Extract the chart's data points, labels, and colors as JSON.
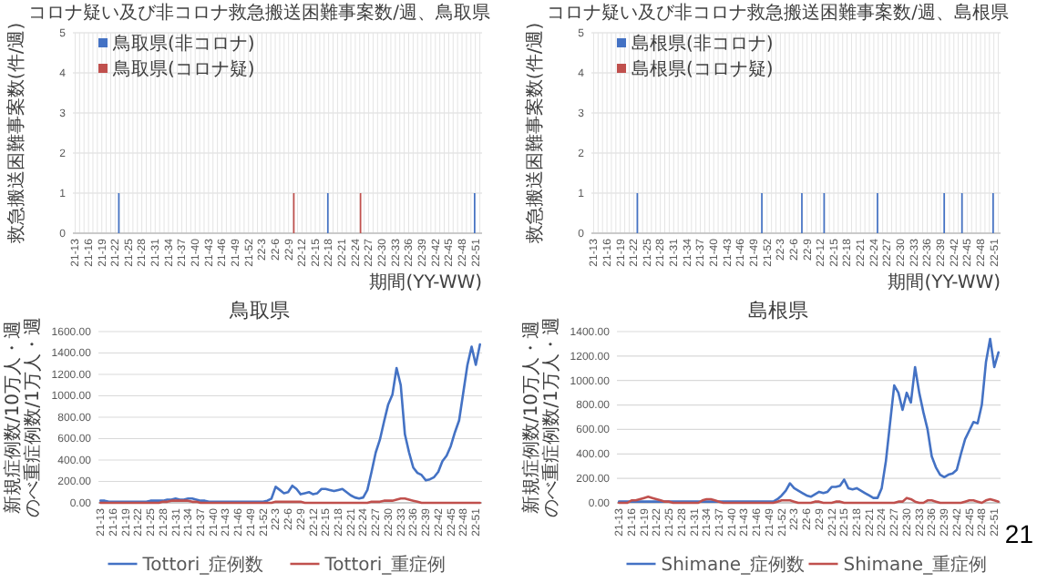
{
  "chart_data": [
    {
      "type": "bar",
      "title": "コロナ疑い及び非コロナ救急搬送困難事案数/週、鳥取県",
      "xlabel": "期間(YY-WW)",
      "ylabel": "救急搬送困難事案数(件/週)",
      "categories": [
        "21-13",
        null,
        null,
        "21-16",
        null,
        null,
        "21-19",
        null,
        null,
        "21-22",
        null,
        null,
        "21-25",
        null,
        null,
        "21-28",
        null,
        null,
        "21-31",
        null,
        null,
        "21-34",
        null,
        null,
        "21-37",
        null,
        null,
        "21-40",
        null,
        null,
        "21-43",
        null,
        null,
        "21-46",
        null,
        null,
        "21-49",
        null,
        null,
        "21-52",
        null,
        null,
        "22-3",
        null,
        null,
        "22-6",
        null,
        null,
        "22-9",
        null,
        null,
        "22-12",
        null,
        null,
        "22-15",
        null,
        null,
        "22-18",
        null,
        null,
        "22-21",
        null,
        null,
        "22-24",
        null,
        null,
        "22-27",
        null,
        null,
        "22-30",
        null,
        null,
        "22-33",
        null,
        null,
        "22-36",
        null,
        null,
        "22-39",
        null,
        null,
        "22-42",
        null,
        null,
        "22-45",
        null,
        null,
        "22-48",
        null,
        null,
        "22-51",
        null
      ],
      "ylim": [
        0,
        5
      ],
      "yticks": [
        0,
        1,
        2,
        3,
        4,
        5
      ],
      "grid": true,
      "legend": "top left",
      "series": [
        {
          "name": "鳥取県(非コロナ)",
          "color": "#4472c4",
          "values": [
            0,
            0,
            0,
            0,
            0,
            0,
            0,
            0,
            0,
            0,
            1,
            0,
            0,
            0,
            0,
            0,
            0,
            0,
            0,
            0,
            0,
            0,
            0,
            0,
            0,
            0,
            0,
            0,
            0,
            0,
            0,
            0,
            0,
            0,
            0,
            0,
            0,
            0,
            0,
            0,
            0,
            0,
            0,
            0,
            0,
            0,
            0,
            0,
            0,
            0,
            0,
            0,
            0,
            0,
            0,
            0,
            0,
            1,
            0,
            0,
            0,
            0,
            0,
            0,
            0,
            0,
            0,
            0,
            0,
            0,
            0,
            0,
            0,
            0,
            0,
            0,
            0,
            0,
            0,
            0,
            0,
            0,
            0,
            0,
            0,
            0,
            0,
            0,
            0,
            0,
            1,
            0
          ]
        },
        {
          "name": "鳥取県(コロナ疑)",
          "color": "#c0504d",
          "values": [
            0,
            0,
            0,
            0,
            0,
            0,
            0,
            0,
            0,
            0,
            0,
            0,
            0,
            0,
            0,
            0,
            0,
            0,
            0,
            0,
            0,
            0,
            0,
            0,
            0,
            0,
            0,
            0,
            0,
            0,
            0,
            0,
            0,
            0,
            0,
            0,
            0,
            0,
            0,
            0,
            0,
            0,
            0,
            0,
            0,
            0,
            0,
            0,
            0,
            1,
            0,
            0,
            0,
            0,
            0,
            0,
            0,
            0,
            0,
            0,
            0,
            0,
            0,
            0,
            1,
            0,
            0,
            0,
            0,
            0,
            0,
            0,
            0,
            0,
            0,
            0,
            0,
            0,
            0,
            0,
            0,
            0,
            0,
            0,
            0,
            0,
            0,
            0,
            0,
            0,
            0,
            0
          ]
        }
      ]
    },
    {
      "type": "bar",
      "title": "コロナ疑い及び非コロナ救急搬送困難事案数/週、島根県",
      "xlabel": "期間(YY-WW)",
      "ylabel": "救急搬送困難事案数(件/週)",
      "categories": [
        "21-13",
        null,
        null,
        "21-16",
        null,
        null,
        "21-19",
        null,
        null,
        "21-22",
        null,
        null,
        "21-25",
        null,
        null,
        "21-28",
        null,
        null,
        "21-31",
        null,
        null,
        "21-34",
        null,
        null,
        "21-37",
        null,
        null,
        "21-40",
        null,
        null,
        "21-43",
        null,
        null,
        "21-46",
        null,
        null,
        "21-49",
        null,
        null,
        "21-52",
        null,
        null,
        "22-3",
        null,
        null,
        "22-6",
        null,
        null,
        "22-9",
        null,
        null,
        "22-12",
        null,
        null,
        "22-15",
        null,
        null,
        "22-18",
        null,
        null,
        "22-21",
        null,
        null,
        "22-24",
        null,
        null,
        "22-27",
        null,
        null,
        "22-30",
        null,
        null,
        "22-33",
        null,
        null,
        "22-36",
        null,
        null,
        "22-39",
        null,
        null,
        "22-42",
        null,
        null,
        "22-45",
        null,
        null,
        "22-48",
        null,
        null,
        "22-51",
        null
      ],
      "ylim": [
        0,
        5
      ],
      "yticks": [
        0,
        1,
        2,
        3,
        4,
        5
      ],
      "grid": true,
      "legend": "top left",
      "series": [
        {
          "name": "島根県(非コロナ)",
          "color": "#4472c4",
          "values": [
            0,
            0,
            0,
            0,
            0,
            0,
            0,
            0,
            0,
            0,
            1,
            0,
            0,
            0,
            0,
            0,
            0,
            0,
            0,
            0,
            0,
            0,
            0,
            0,
            0,
            0,
            0,
            0,
            0,
            0,
            0,
            0,
            0,
            0,
            0,
            0,
            0,
            0,
            1,
            0,
            0,
            0,
            0,
            0,
            0,
            0,
            0,
            1,
            0,
            0,
            0,
            0,
            1,
            0,
            0,
            0,
            0,
            0,
            0,
            0,
            0,
            0,
            0,
            0,
            1,
            0,
            0,
            0,
            0,
            0,
            0,
            0,
            0,
            0,
            0,
            0,
            0,
            0,
            0,
            1,
            0,
            0,
            0,
            1,
            0,
            0,
            0,
            0,
            0,
            0,
            1,
            0
          ]
        },
        {
          "name": "島根県(コロナ疑)",
          "color": "#c0504d",
          "values": [
            0,
            0,
            0,
            0,
            0,
            0,
            0,
            0,
            0,
            0,
            0,
            0,
            0,
            0,
            0,
            0,
            0,
            0,
            0,
            0,
            0,
            0,
            0,
            0,
            0,
            0,
            0,
            0,
            0,
            0,
            0,
            0,
            0,
            0,
            0,
            0,
            0,
            0,
            0,
            0,
            0,
            0,
            0,
            0,
            0,
            0,
            0,
            0,
            0,
            0,
            0,
            0,
            0,
            0,
            0,
            0,
            0,
            0,
            0,
            0,
            0,
            0,
            0,
            0,
            0,
            0,
            0,
            0,
            0,
            0,
            0,
            0,
            0,
            0,
            0,
            0,
            0,
            0,
            0,
            0,
            0,
            0,
            0,
            0,
            0,
            0,
            0,
            0,
            0,
            0,
            0,
            0
          ]
        }
      ]
    },
    {
      "type": "line",
      "title": "鳥取県",
      "ylabel": "新規症例数/10万人・週のべ重症例数/1万人・週",
      "categories": [
        "21-13",
        null,
        null,
        "21-16",
        null,
        null,
        "21-19",
        null,
        null,
        "21-22",
        null,
        null,
        "21-25",
        null,
        null,
        "21-28",
        null,
        null,
        "21-31",
        null,
        null,
        "21-34",
        null,
        null,
        "21-37",
        null,
        null,
        "21-40",
        null,
        null,
        "21-43",
        null,
        null,
        "21-46",
        null,
        null,
        "21-49",
        null,
        null,
        "21-52",
        null,
        null,
        "22-3",
        null,
        null,
        "22-6",
        null,
        null,
        "22-9",
        null,
        null,
        "22-12",
        null,
        null,
        "22-15",
        null,
        null,
        "22-18",
        null,
        null,
        "22-21",
        null,
        null,
        "22-24",
        null,
        null,
        "22-27",
        null,
        null,
        "22-30",
        null,
        null,
        "22-33",
        null,
        null,
        "22-36",
        null,
        null,
        "22-39",
        null,
        null,
        "22-42",
        null,
        null,
        "22-45",
        null,
        null,
        "22-48",
        null,
        null,
        "22-51",
        null
      ],
      "ylim": [
        0,
        1600
      ],
      "yticks": [
        {
          "value": 0,
          "label": "0.00"
        },
        {
          "value": 200,
          "label": "200.00"
        },
        {
          "value": 400,
          "label": "400.00"
        },
        {
          "value": 600,
          "label": "600.00"
        },
        {
          "value": 800,
          "label": "800.00"
        },
        {
          "value": 1000,
          "label": "1000.00"
        },
        {
          "value": 1200,
          "label": "1200.00"
        },
        {
          "value": 1400,
          "label": "1400.00"
        },
        {
          "value": 1600,
          "label": "1600.00"
        }
      ],
      "grid": "y",
      "legend": "bottom",
      "series": [
        {
          "name": "Tottori_症例数",
          "color": "#4472c4",
          "values": [
            20,
            20,
            10,
            10,
            10,
            10,
            10,
            10,
            10,
            10,
            10,
            10,
            20,
            20,
            20,
            20,
            30,
            30,
            40,
            30,
            30,
            40,
            40,
            30,
            20,
            20,
            10,
            10,
            10,
            10,
            10,
            10,
            10,
            10,
            10,
            10,
            10,
            10,
            10,
            10,
            20,
            40,
            150,
            120,
            90,
            100,
            160,
            130,
            80,
            90,
            100,
            80,
            90,
            130,
            130,
            120,
            110,
            120,
            130,
            100,
            70,
            50,
            40,
            50,
            120,
            290,
            470,
            590,
            760,
            920,
            1010,
            1260,
            1100,
            640,
            470,
            330,
            280,
            260,
            210,
            220,
            240,
            290,
            390,
            440,
            530,
            660,
            770,
            1030,
            1290,
            1460,
            1290,
            1480
          ]
        },
        {
          "name": "Tottori_重症例",
          "color": "#c0504d",
          "values": [
            0,
            0,
            0,
            0,
            0,
            0,
            0,
            0,
            0,
            0,
            0,
            0,
            0,
            0,
            0,
            10,
            10,
            20,
            20,
            20,
            20,
            20,
            10,
            10,
            0,
            0,
            0,
            0,
            0,
            0,
            0,
            0,
            0,
            0,
            0,
            0,
            0,
            0,
            0,
            0,
            0,
            0,
            10,
            10,
            10,
            10,
            10,
            10,
            10,
            0,
            0,
            0,
            0,
            0,
            0,
            0,
            0,
            0,
            0,
            0,
            0,
            0,
            0,
            0,
            0,
            10,
            10,
            10,
            20,
            20,
            20,
            30,
            40,
            40,
            30,
            20,
            10,
            0,
            0,
            0,
            0,
            0,
            0,
            0,
            0,
            0,
            0,
            0,
            0,
            0,
            0,
            0
          ]
        }
      ]
    },
    {
      "type": "line",
      "title": "島根県",
      "ylabel": "新規症例数/10万人・週のべ重症例数/1万人・週",
      "categories": [
        "21-13",
        null,
        null,
        "21-16",
        null,
        null,
        "21-19",
        null,
        null,
        "21-22",
        null,
        null,
        "21-25",
        null,
        null,
        "21-28",
        null,
        null,
        "21-31",
        null,
        null,
        "21-34",
        null,
        null,
        "21-37",
        null,
        null,
        "21-40",
        null,
        null,
        "21-43",
        null,
        null,
        "21-46",
        null,
        null,
        "21-49",
        null,
        null,
        "21-52",
        null,
        null,
        "22-3",
        null,
        null,
        "22-6",
        null,
        null,
        "22-9",
        null,
        null,
        "22-12",
        null,
        null,
        "22-15",
        null,
        null,
        "22-18",
        null,
        null,
        "22-21",
        null,
        null,
        "22-24",
        null,
        null,
        "22-27",
        null,
        null,
        "22-30",
        null,
        null,
        "22-33",
        null,
        null,
        "22-36",
        null,
        null,
        "22-39",
        null,
        null,
        "22-42",
        null,
        null,
        "22-45",
        null,
        null,
        "22-48",
        null,
        null,
        "22-51",
        null
      ],
      "ylim": [
        0,
        1400
      ],
      "yticks": [
        {
          "value": 0,
          "label": "0.00"
        },
        {
          "value": 200,
          "label": "200.00"
        },
        {
          "value": 400,
          "label": "400.00"
        },
        {
          "value": 600,
          "label": "600.00"
        },
        {
          "value": 800,
          "label": "800.00"
        },
        {
          "value": 1000,
          "label": "1000.00"
        },
        {
          "value": 1200,
          "label": "1200.00"
        },
        {
          "value": 1400,
          "label": "1400.00"
        }
      ],
      "grid": "y",
      "legend": "bottom",
      "annotations": [
        "21"
      ],
      "series": [
        {
          "name": "Shimane_症例数",
          "color": "#4472c4",
          "values": [
            10,
            10,
            10,
            10,
            10,
            10,
            10,
            10,
            10,
            10,
            10,
            10,
            10,
            10,
            10,
            10,
            10,
            10,
            10,
            10,
            10,
            10,
            10,
            10,
            10,
            10,
            10,
            10,
            10,
            10,
            10,
            10,
            10,
            10,
            10,
            10,
            10,
            10,
            30,
            60,
            100,
            160,
            120,
            100,
            80,
            60,
            50,
            70,
            90,
            80,
            90,
            130,
            130,
            140,
            190,
            120,
            110,
            120,
            100,
            80,
            60,
            40,
            40,
            120,
            340,
            650,
            960,
            900,
            760,
            900,
            820,
            1110,
            900,
            740,
            600,
            380,
            290,
            230,
            210,
            230,
            240,
            270,
            400,
            520,
            590,
            660,
            650,
            800,
            1150,
            1340,
            1110,
            1230
          ]
        },
        {
          "name": "Shimane_重症例",
          "color": "#c0504d",
          "values": [
            0,
            0,
            0,
            20,
            20,
            30,
            40,
            50,
            40,
            30,
            20,
            10,
            10,
            0,
            0,
            0,
            0,
            0,
            0,
            0,
            20,
            30,
            30,
            20,
            10,
            0,
            0,
            0,
            0,
            0,
            0,
            0,
            0,
            0,
            0,
            0,
            0,
            0,
            10,
            20,
            20,
            20,
            10,
            0,
            0,
            0,
            0,
            10,
            10,
            0,
            0,
            0,
            10,
            10,
            0,
            0,
            0,
            0,
            0,
            0,
            0,
            0,
            0,
            0,
            0,
            0,
            0,
            10,
            10,
            40,
            30,
            10,
            0,
            0,
            20,
            20,
            10,
            0,
            0,
            0,
            0,
            0,
            0,
            10,
            20,
            20,
            10,
            0,
            20,
            30,
            20,
            10
          ]
        }
      ]
    }
  ]
}
